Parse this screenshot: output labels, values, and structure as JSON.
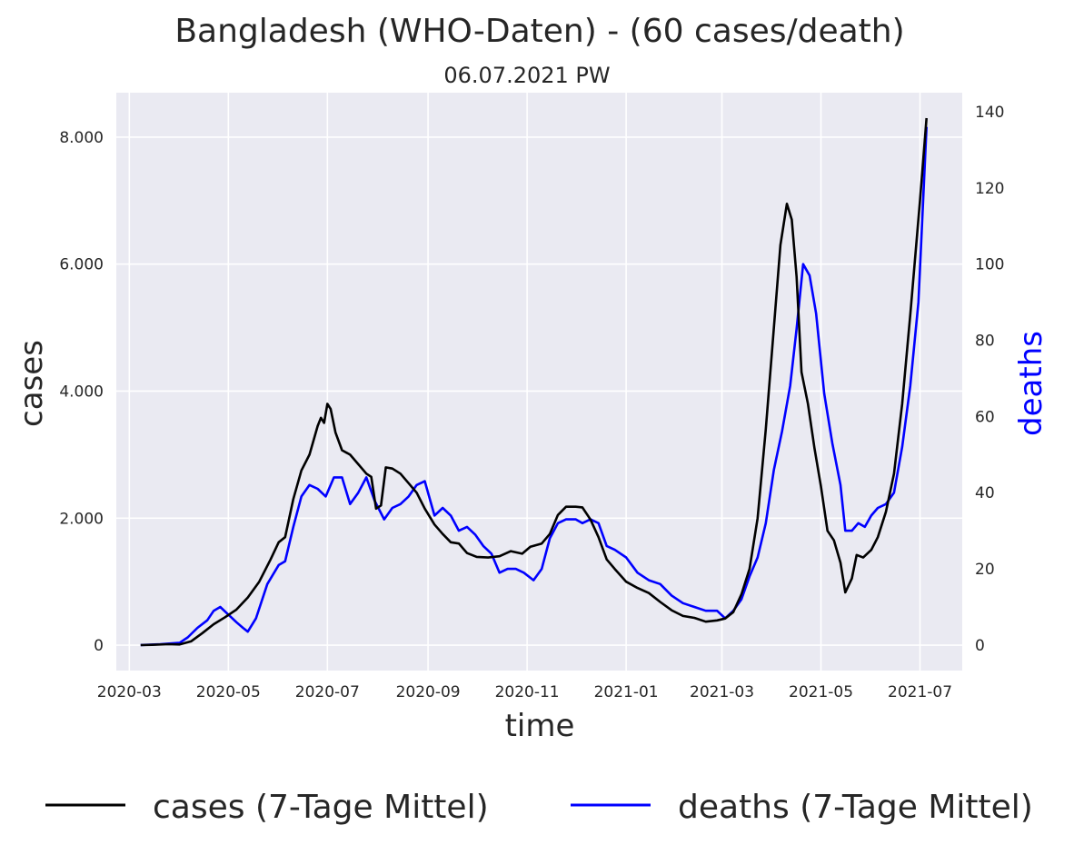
{
  "chart_data": {
    "type": "line",
    "title": "Bangladesh (WHO-Daten) - (60 cases/death)",
    "subtitle": "06.07.2021 PW",
    "xlabel": "time",
    "ylabel": "cases",
    "y2label": "deaths",
    "ylim": [
      -400,
      8700
    ],
    "y2lim": [
      -6.7,
      145
    ],
    "yticks": [
      0,
      2000,
      4000,
      6000,
      8000
    ],
    "ytick_labels": [
      "0",
      "2.000",
      "4.000",
      "6.000",
      "8.000"
    ],
    "y2ticks": [
      0,
      20,
      40,
      60,
      80,
      100,
      120,
      140
    ],
    "y2tick_labels": [
      "0",
      "20",
      "40",
      "60",
      "80",
      "100",
      "120",
      "140"
    ],
    "xlim": [
      "2020-02-22",
      "2021-07-27"
    ],
    "xticks": [
      "2020-03-01",
      "2020-05-01",
      "2020-07-01",
      "2020-09-01",
      "2020-11-01",
      "2021-01-01",
      "2021-03-01",
      "2021-05-01",
      "2021-07-01"
    ],
    "xtick_labels": [
      "2020-03",
      "2020-05",
      "2020-07",
      "2020-09",
      "2020-11",
      "2021-01",
      "2021-03",
      "2021-05",
      "2021-07"
    ],
    "grid": true,
    "legend_position": "bottom",
    "colors": {
      "cases": "#000000",
      "deaths": "#0000ff",
      "background": "#eaeaf2",
      "grid": "#ffffff",
      "deaths_label": "#0000ff"
    },
    "series": [
      {
        "name": "cases (7-Tage Mittel)",
        "axis": "left",
        "color": "#000000",
        "points": [
          [
            "2020-03-08",
            0
          ],
          [
            "2020-03-15",
            5
          ],
          [
            "2020-03-25",
            15
          ],
          [
            "2020-04-01",
            10
          ],
          [
            "2020-04-08",
            60
          ],
          [
            "2020-04-15",
            190
          ],
          [
            "2020-04-22",
            330
          ],
          [
            "2020-04-29",
            440
          ],
          [
            "2020-05-06",
            560
          ],
          [
            "2020-05-13",
            750
          ],
          [
            "2020-05-20",
            1000
          ],
          [
            "2020-05-27",
            1350
          ],
          [
            "2020-06-01",
            1620
          ],
          [
            "2020-06-05",
            1700
          ],
          [
            "2020-06-10",
            2300
          ],
          [
            "2020-06-15",
            2750
          ],
          [
            "2020-06-20",
            3000
          ],
          [
            "2020-06-25",
            3450
          ],
          [
            "2020-06-27",
            3580
          ],
          [
            "2020-06-29",
            3500
          ],
          [
            "2020-07-01",
            3800
          ],
          [
            "2020-07-03",
            3720
          ],
          [
            "2020-07-06",
            3350
          ],
          [
            "2020-07-10",
            3070
          ],
          [
            "2020-07-15",
            3000
          ],
          [
            "2020-07-20",
            2850
          ],
          [
            "2020-07-25",
            2700
          ],
          [
            "2020-07-28",
            2650
          ],
          [
            "2020-07-31",
            2150
          ],
          [
            "2020-08-03",
            2200
          ],
          [
            "2020-08-06",
            2800
          ],
          [
            "2020-08-10",
            2780
          ],
          [
            "2020-08-15",
            2700
          ],
          [
            "2020-08-20",
            2550
          ],
          [
            "2020-08-25",
            2400
          ],
          [
            "2020-08-30",
            2150
          ],
          [
            "2020-09-05",
            1900
          ],
          [
            "2020-09-10",
            1750
          ],
          [
            "2020-09-15",
            1620
          ],
          [
            "2020-09-20",
            1600
          ],
          [
            "2020-09-25",
            1450
          ],
          [
            "2020-10-01",
            1390
          ],
          [
            "2020-10-08",
            1380
          ],
          [
            "2020-10-15",
            1400
          ],
          [
            "2020-10-22",
            1480
          ],
          [
            "2020-10-29",
            1440
          ],
          [
            "2020-11-03",
            1550
          ],
          [
            "2020-11-10",
            1600
          ],
          [
            "2020-11-15",
            1750
          ],
          [
            "2020-11-20",
            2050
          ],
          [
            "2020-11-25",
            2180
          ],
          [
            "2020-12-01",
            2180
          ],
          [
            "2020-12-05",
            2170
          ],
          [
            "2020-12-10",
            1980
          ],
          [
            "2020-12-15",
            1700
          ],
          [
            "2020-12-20",
            1350
          ],
          [
            "2020-12-25",
            1200
          ],
          [
            "2021-01-01",
            1000
          ],
          [
            "2021-01-08",
            900
          ],
          [
            "2021-01-15",
            820
          ],
          [
            "2021-01-22",
            680
          ],
          [
            "2021-01-29",
            550
          ],
          [
            "2021-02-05",
            460
          ],
          [
            "2021-02-12",
            430
          ],
          [
            "2021-02-19",
            370
          ],
          [
            "2021-02-26",
            390
          ],
          [
            "2021-03-03",
            420
          ],
          [
            "2021-03-08",
            520
          ],
          [
            "2021-03-13",
            800
          ],
          [
            "2021-03-18",
            1200
          ],
          [
            "2021-03-23",
            2000
          ],
          [
            "2021-03-28",
            3400
          ],
          [
            "2021-04-02",
            5000
          ],
          [
            "2021-04-06",
            6300
          ],
          [
            "2021-04-10",
            6950
          ],
          [
            "2021-04-13",
            6700
          ],
          [
            "2021-04-16",
            5800
          ],
          [
            "2021-04-19",
            4300
          ],
          [
            "2021-04-23",
            3800
          ],
          [
            "2021-04-27",
            3100
          ],
          [
            "2021-05-01",
            2500
          ],
          [
            "2021-05-05",
            1800
          ],
          [
            "2021-05-09",
            1650
          ],
          [
            "2021-05-13",
            1300
          ],
          [
            "2021-05-16",
            830
          ],
          [
            "2021-05-20",
            1050
          ],
          [
            "2021-05-23",
            1420
          ],
          [
            "2021-05-27",
            1380
          ],
          [
            "2021-06-01",
            1500
          ],
          [
            "2021-06-05",
            1700
          ],
          [
            "2021-06-10",
            2100
          ],
          [
            "2021-06-15",
            2700
          ],
          [
            "2021-06-20",
            3800
          ],
          [
            "2021-06-25",
            5200
          ],
          [
            "2021-07-01",
            7000
          ],
          [
            "2021-07-05",
            8300
          ]
        ]
      },
      {
        "name": "deaths (7-Tage Mittel)",
        "axis": "right",
        "color": "#0000ff",
        "points": [
          [
            "2020-03-08",
            0
          ],
          [
            "2020-03-20",
            0.2
          ],
          [
            "2020-04-01",
            0.6
          ],
          [
            "2020-04-06",
            2
          ],
          [
            "2020-04-12",
            4.5
          ],
          [
            "2020-04-18",
            6.5
          ],
          [
            "2020-04-22",
            9
          ],
          [
            "2020-04-26",
            10
          ],
          [
            "2020-05-01",
            8
          ],
          [
            "2020-05-06",
            6
          ],
          [
            "2020-05-10",
            4.5
          ],
          [
            "2020-05-13",
            3.5
          ],
          [
            "2020-05-18",
            7
          ],
          [
            "2020-05-25",
            16
          ],
          [
            "2020-06-01",
            21
          ],
          [
            "2020-06-05",
            22
          ],
          [
            "2020-06-10",
            31
          ],
          [
            "2020-06-15",
            39
          ],
          [
            "2020-06-20",
            42
          ],
          [
            "2020-06-25",
            41
          ],
          [
            "2020-06-30",
            39
          ],
          [
            "2020-07-05",
            44
          ],
          [
            "2020-07-10",
            44
          ],
          [
            "2020-07-15",
            37
          ],
          [
            "2020-07-20",
            40
          ],
          [
            "2020-07-25",
            44
          ],
          [
            "2020-07-30",
            38
          ],
          [
            "2020-08-05",
            33
          ],
          [
            "2020-08-10",
            36
          ],
          [
            "2020-08-15",
            37
          ],
          [
            "2020-08-20",
            39
          ],
          [
            "2020-08-25",
            42
          ],
          [
            "2020-08-30",
            43
          ],
          [
            "2020-09-05",
            34
          ],
          [
            "2020-09-10",
            36
          ],
          [
            "2020-09-15",
            34
          ],
          [
            "2020-09-20",
            30
          ],
          [
            "2020-09-25",
            31
          ],
          [
            "2020-09-30",
            29
          ],
          [
            "2020-10-05",
            26
          ],
          [
            "2020-10-10",
            24
          ],
          [
            "2020-10-15",
            19
          ],
          [
            "2020-10-20",
            20
          ],
          [
            "2020-10-25",
            20
          ],
          [
            "2020-10-30",
            19
          ],
          [
            "2020-11-05",
            17
          ],
          [
            "2020-11-10",
            20
          ],
          [
            "2020-11-15",
            28
          ],
          [
            "2020-11-20",
            32
          ],
          [
            "2020-11-25",
            33
          ],
          [
            "2020-12-01",
            33
          ],
          [
            "2020-12-05",
            32
          ],
          [
            "2020-12-10",
            33
          ],
          [
            "2020-12-15",
            32
          ],
          [
            "2020-12-20",
            26
          ],
          [
            "2020-12-25",
            25
          ],
          [
            "2021-01-01",
            23
          ],
          [
            "2021-01-08",
            19
          ],
          [
            "2021-01-15",
            17
          ],
          [
            "2021-01-22",
            16
          ],
          [
            "2021-01-29",
            13
          ],
          [
            "2021-02-05",
            11
          ],
          [
            "2021-02-12",
            10
          ],
          [
            "2021-02-19",
            9
          ],
          [
            "2021-02-26",
            9
          ],
          [
            "2021-03-03",
            7
          ],
          [
            "2021-03-08",
            9
          ],
          [
            "2021-03-13",
            12
          ],
          [
            "2021-03-18",
            18
          ],
          [
            "2021-03-23",
            23
          ],
          [
            "2021-03-28",
            32
          ],
          [
            "2021-04-02",
            46
          ],
          [
            "2021-04-07",
            56
          ],
          [
            "2021-04-12",
            68
          ],
          [
            "2021-04-16",
            83
          ],
          [
            "2021-04-20",
            100
          ],
          [
            "2021-04-24",
            97
          ],
          [
            "2021-04-28",
            87
          ],
          [
            "2021-05-03",
            66
          ],
          [
            "2021-05-08",
            53
          ],
          [
            "2021-05-13",
            42
          ],
          [
            "2021-05-16",
            30
          ],
          [
            "2021-05-20",
            30
          ],
          [
            "2021-05-24",
            32
          ],
          [
            "2021-05-28",
            31
          ],
          [
            "2021-06-01",
            34
          ],
          [
            "2021-06-05",
            36
          ],
          [
            "2021-06-10",
            37
          ],
          [
            "2021-06-15",
            40
          ],
          [
            "2021-06-20",
            52
          ],
          [
            "2021-06-25",
            68
          ],
          [
            "2021-06-30",
            90
          ],
          [
            "2021-07-05",
            136
          ]
        ]
      }
    ]
  }
}
